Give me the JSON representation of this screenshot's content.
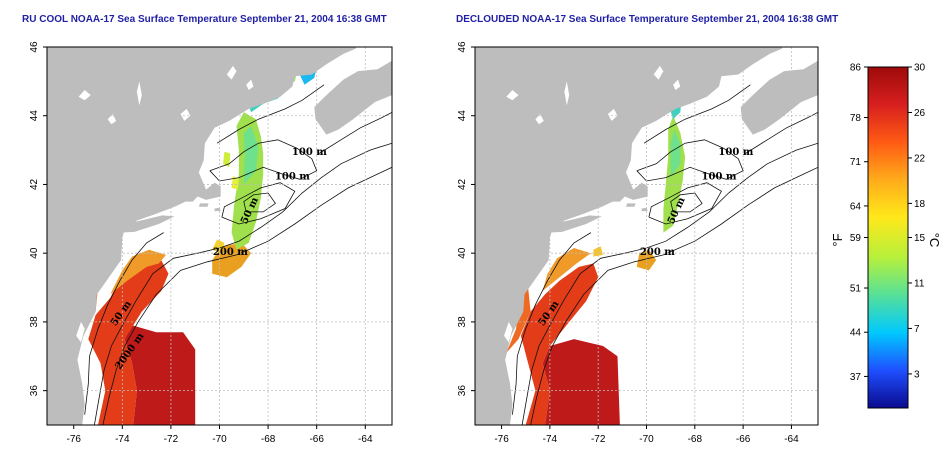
{
  "chart_data": [
    {
      "type": "heatmap",
      "title": "RU COOL NOAA-17 Sea Surface Temperature September 21, 2004 16:38 GMT",
      "x_ticks": [
        "-76",
        "-74",
        "-72",
        "-70",
        "-68",
        "-66",
        "-64"
      ],
      "y_ticks": [
        "36",
        "38",
        "40",
        "42",
        "44",
        "46"
      ],
      "xlim": [
        -77.1,
        -62.9
      ],
      "ylim": [
        35,
        46
      ],
      "grid": true,
      "contour_labels": [
        "100 m",
        "100 m",
        "50 m",
        "200 m",
        "50 m",
        "2000 m"
      ]
    },
    {
      "type": "heatmap",
      "title": "DECLOUDED NOAA-17 Sea Surface Temperature September 21, 2004 16:38 GMT",
      "x_ticks": [
        "-76",
        "-74",
        "-72",
        "-70",
        "-68",
        "-66",
        "-64"
      ],
      "y_ticks": [
        "36",
        "38",
        "40",
        "42",
        "44",
        "46"
      ],
      "xlim": [
        -77.1,
        -62.9
      ],
      "ylim": [
        35,
        46
      ],
      "grid": true,
      "contour_labels": [
        "100 m",
        "100 m",
        "50 m",
        "200 m",
        "50 m"
      ]
    }
  ],
  "colorbar": {
    "fahrenheit_label": "°F",
    "celsius_label": "°C",
    "fahrenheit_ticks": [
      "86",
      "78",
      "71",
      "64",
      "59",
      "51",
      "44",
      "37"
    ],
    "celsius_ticks": [
      "30",
      "26",
      "22",
      "18",
      "15",
      "11",
      "7",
      "3"
    ],
    "celsius_range": [
      0,
      30
    ],
    "colors": [
      "#0a0a8f",
      "#1f4fff",
      "#00c8ff",
      "#55e09a",
      "#b5f03c",
      "#ffe81a",
      "#ffab1a",
      "#ff5a14",
      "#d71f1f",
      "#9e0a0a"
    ]
  }
}
